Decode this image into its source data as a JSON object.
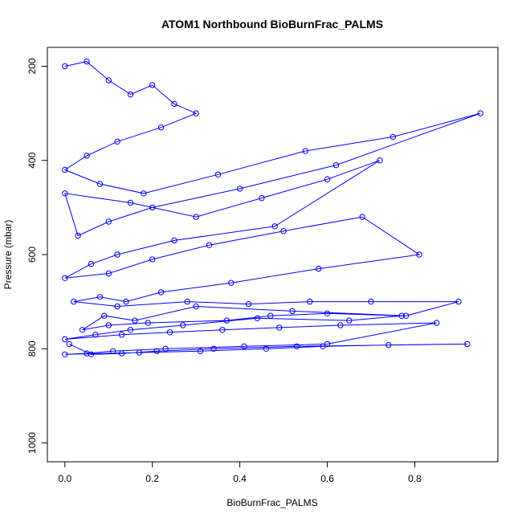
{
  "chart_data": {
    "type": "scatter",
    "title": "ATOM1 Northbound BioBurnFrac_PALMS",
    "xlabel": "BioBurnFrac_PALMS",
    "ylabel": "Pressure (mbar)",
    "xlim": [
      -0.04,
      0.99
    ],
    "ylim": [
      1040,
      160
    ],
    "y_reversed": true,
    "x_ticks": [
      "0.0",
      "0.2",
      "0.4",
      "0.6",
      "0.8"
    ],
    "y_ticks": [
      "200",
      "400",
      "600",
      "800",
      "1000"
    ],
    "x_tick_values": [
      0,
      0.2,
      0.4,
      0.6,
      0.8
    ],
    "y_tick_values": [
      200,
      400,
      600,
      800,
      1000
    ],
    "color": "#0000ff",
    "grid": false,
    "series": [
      {
        "x": [
          0.0,
          0.05,
          0.1,
          0.15,
          0.2,
          0.25,
          0.3,
          0.22,
          0.12,
          0.05,
          0.0,
          0.08,
          0.18,
          0.35,
          0.55,
          0.75,
          0.95,
          0.62,
          0.4,
          0.2,
          0.1,
          0.03,
          0.0,
          0.15,
          0.3,
          0.45,
          0.6,
          0.72,
          0.48,
          0.25,
          0.12,
          0.06,
          0.0,
          0.1,
          0.2,
          0.33,
          0.5,
          0.68,
          0.81,
          0.58,
          0.38,
          0.22,
          0.14,
          0.08,
          0.02,
          0.12,
          0.28,
          0.42,
          0.56,
          0.7,
          0.9,
          0.78,
          0.52,
          0.3,
          0.16,
          0.09,
          0.04,
          0.1,
          0.19,
          0.37,
          0.47,
          0.6,
          0.77,
          0.65,
          0.44,
          0.27,
          0.15,
          0.07,
          0.0,
          0.13,
          0.24,
          0.36,
          0.49,
          0.63,
          0.85,
          0.6,
          0.41,
          0.23,
          0.11,
          0.05,
          0.0,
          0.17,
          0.31,
          0.46,
          0.59,
          0.74,
          0.92,
          0.53,
          0.34,
          0.21,
          0.13,
          0.06,
          0.01
        ],
        "y": [
          200,
          190,
          230,
          260,
          240,
          280,
          300,
          330,
          360,
          390,
          420,
          450,
          470,
          430,
          380,
          350,
          300,
          410,
          460,
          500,
          530,
          560,
          470,
          490,
          520,
          480,
          440,
          400,
          540,
          570,
          600,
          620,
          650,
          640,
          610,
          580,
          550,
          520,
          600,
          630,
          660,
          680,
          700,
          690,
          700,
          710,
          700,
          705,
          700,
          700,
          700,
          730,
          720,
          710,
          740,
          730,
          760,
          750,
          745,
          740,
          730,
          725,
          730,
          740,
          735,
          750,
          760,
          770,
          780,
          770,
          765,
          760,
          755,
          750,
          745,
          790,
          795,
          800,
          805,
          810,
          812,
          808,
          805,
          800,
          795,
          792,
          790,
          795,
          800,
          805,
          810,
          812,
          790
        ]
      }
    ]
  }
}
